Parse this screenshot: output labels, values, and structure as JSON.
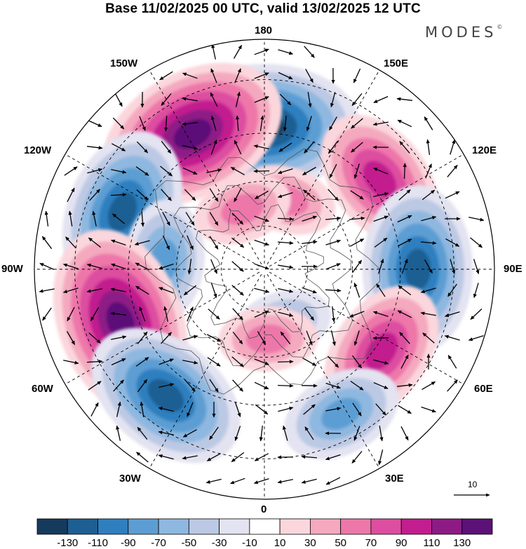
{
  "title": "Base 11/02/2025 00 UTC, valid 13/02/2025 12 UTC",
  "brand": "MODES",
  "brand_mark": "©",
  "longitude_labels": {
    "n180": "180",
    "w150": "150W",
    "e150": "150E",
    "w120": "120W",
    "e120": "120E",
    "w90": "90W",
    "e90": "90E",
    "w60": "60W",
    "e60": "60E",
    "w30": "30W",
    "e30": "30E",
    "s0": "0"
  },
  "reference_vector": {
    "value": "10"
  },
  "colorbar": {
    "colors": [
      "#163a5c",
      "#1d5f93",
      "#2f7fbf",
      "#5c9ed3",
      "#8fb8e0",
      "#bcc9e4",
      "#e3e3f1",
      "#ffffff",
      "#fbd7dd",
      "#f4a9bf",
      "#ee77aa",
      "#dd4ea0",
      "#c21e8f",
      "#8e1a86",
      "#5c1178"
    ],
    "ticks": [
      "-130",
      "-110",
      "-90",
      "-70",
      "-50",
      "-30",
      "-10",
      "10",
      "30",
      "50",
      "70",
      "90",
      "110",
      "130"
    ]
  },
  "anomaly_centers": [
    {
      "name": "low-180",
      "lon_deg": 180,
      "lat_deg": 43,
      "value": -120
    },
    {
      "name": "high-150w",
      "lon_deg": 208,
      "lat_deg": 40,
      "value": 120
    },
    {
      "name": "low-110w",
      "lon_deg": 248,
      "lat_deg": 40,
      "value": -115
    },
    {
      "name": "low-95w",
      "lon_deg": 265,
      "lat_deg": 56,
      "value": -60
    },
    {
      "name": "high-75w",
      "lon_deg": 290,
      "lat_deg": 40,
      "value": 130
    },
    {
      "name": "low-45w",
      "lon_deg": 322,
      "lat_deg": 38,
      "value": -105
    },
    {
      "name": "high-130e",
      "lon_deg": 128,
      "lat_deg": 42,
      "value": 95
    },
    {
      "name": "high-165e",
      "lon_deg": 162,
      "lat_deg": 65,
      "value": 45
    },
    {
      "name": "high-160w",
      "lon_deg": 200,
      "lat_deg": 68,
      "value": 40
    },
    {
      "name": "low-90e",
      "lon_deg": 90,
      "lat_deg": 40,
      "value": -115
    },
    {
      "name": "high-55e",
      "lon_deg": 55,
      "lat_deg": 43,
      "value": 95
    },
    {
      "name": "low-25e",
      "lon_deg": 28,
      "lat_deg": 37,
      "value": -65
    },
    {
      "name": "low-15e",
      "lon_deg": 18,
      "lat_deg": 70,
      "value": -45
    },
    {
      "name": "high-5e",
      "lon_deg": 3,
      "lat_deg": 66,
      "value": 45
    }
  ]
}
